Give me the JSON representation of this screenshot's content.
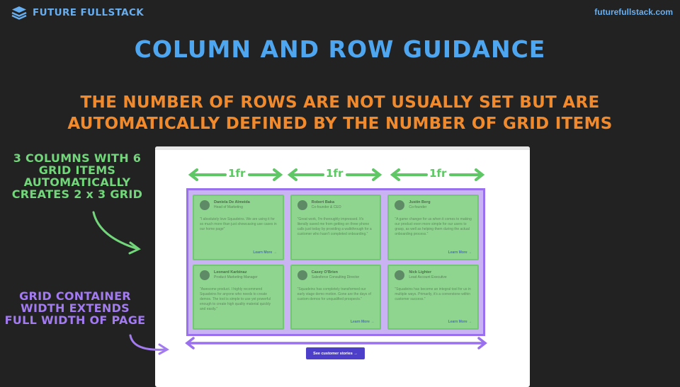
{
  "header": {
    "brand": "FUTURE FULLSTACK",
    "site_url": "futurefullstack.com"
  },
  "slide": {
    "title": "COLUMN AND ROW GUIDANCE",
    "subtitle": "THE NUMBER OF ROWS ARE NOT USUALLY SET BUT ARE AUTOMATICALLY DEFINED BY THE NUMBER OF GRID ITEMS",
    "note_columns": "3 COLUMNS WITH 6 GRID ITEMS AUTOMATICALLY CREATES 2 x 3 GRID",
    "note_width": "GRID CONTAINER WIDTH EXTENDS FULL WIDTH OF PAGE"
  },
  "measurements": [
    "1fr",
    "1fr",
    "1fr"
  ],
  "cards": [
    {
      "name": "Daniela De Almeida",
      "role": "Head of Marketing",
      "quote": "\"I absolutely love Squadeins. We are using it for so much more than just showcasing use cases in our home page\"",
      "link": "Learn More →"
    },
    {
      "name": "Robert Baka",
      "role": "Co-founder & CEO",
      "quote": "\"Great work, I'm thoroughly impressed. It's literally saved me from getting on three phone calls just today by providing a walkthrough for a customer who hasn't completed onboarding.\"",
      "link": ""
    },
    {
      "name": "Justin Berg",
      "role": "Co-founder",
      "quote": "\"A game changer for us when it comes to making our product even more simple for our users to grasp, as well as helping them during the actual onboarding process.\"",
      "link": "Learn More →"
    },
    {
      "name": "Leonard Karbinaz",
      "role": "Product Marketing Manager",
      "quote": "\"Awesome product. I highly recommend Squadeins for anyone who needs to create demos. The tool is simple to use yet powerful enough to create high quality material quickly and easily.\"",
      "link": ""
    },
    {
      "name": "Casey O'Brien",
      "role": "Salesforce Consulting Director",
      "quote": "\"Squadeins has completely transformed our early stage demo motion. Gone are the days of custom demos for unqualified prospects.\"",
      "link": "Learn More →"
    },
    {
      "name": "Nick Lighter",
      "role": "Lead Account Executive",
      "quote": "\"Squadeins has become an integral tool for us in multiple ways. Primarily, it's a cornerstone within customer success.\"",
      "link": "Learn More →"
    }
  ],
  "cta": {
    "label": "See customer stories →"
  },
  "colors": {
    "background": "#222222",
    "title": "#4ea6f1",
    "subtitle": "#f08a2c",
    "green_note": "#72d67a",
    "purple_note": "#a37bf0",
    "grid_item": "#8fd58f",
    "grid_container": "#c9b3f3"
  },
  "icons": [
    "layers-logo-icon"
  ]
}
